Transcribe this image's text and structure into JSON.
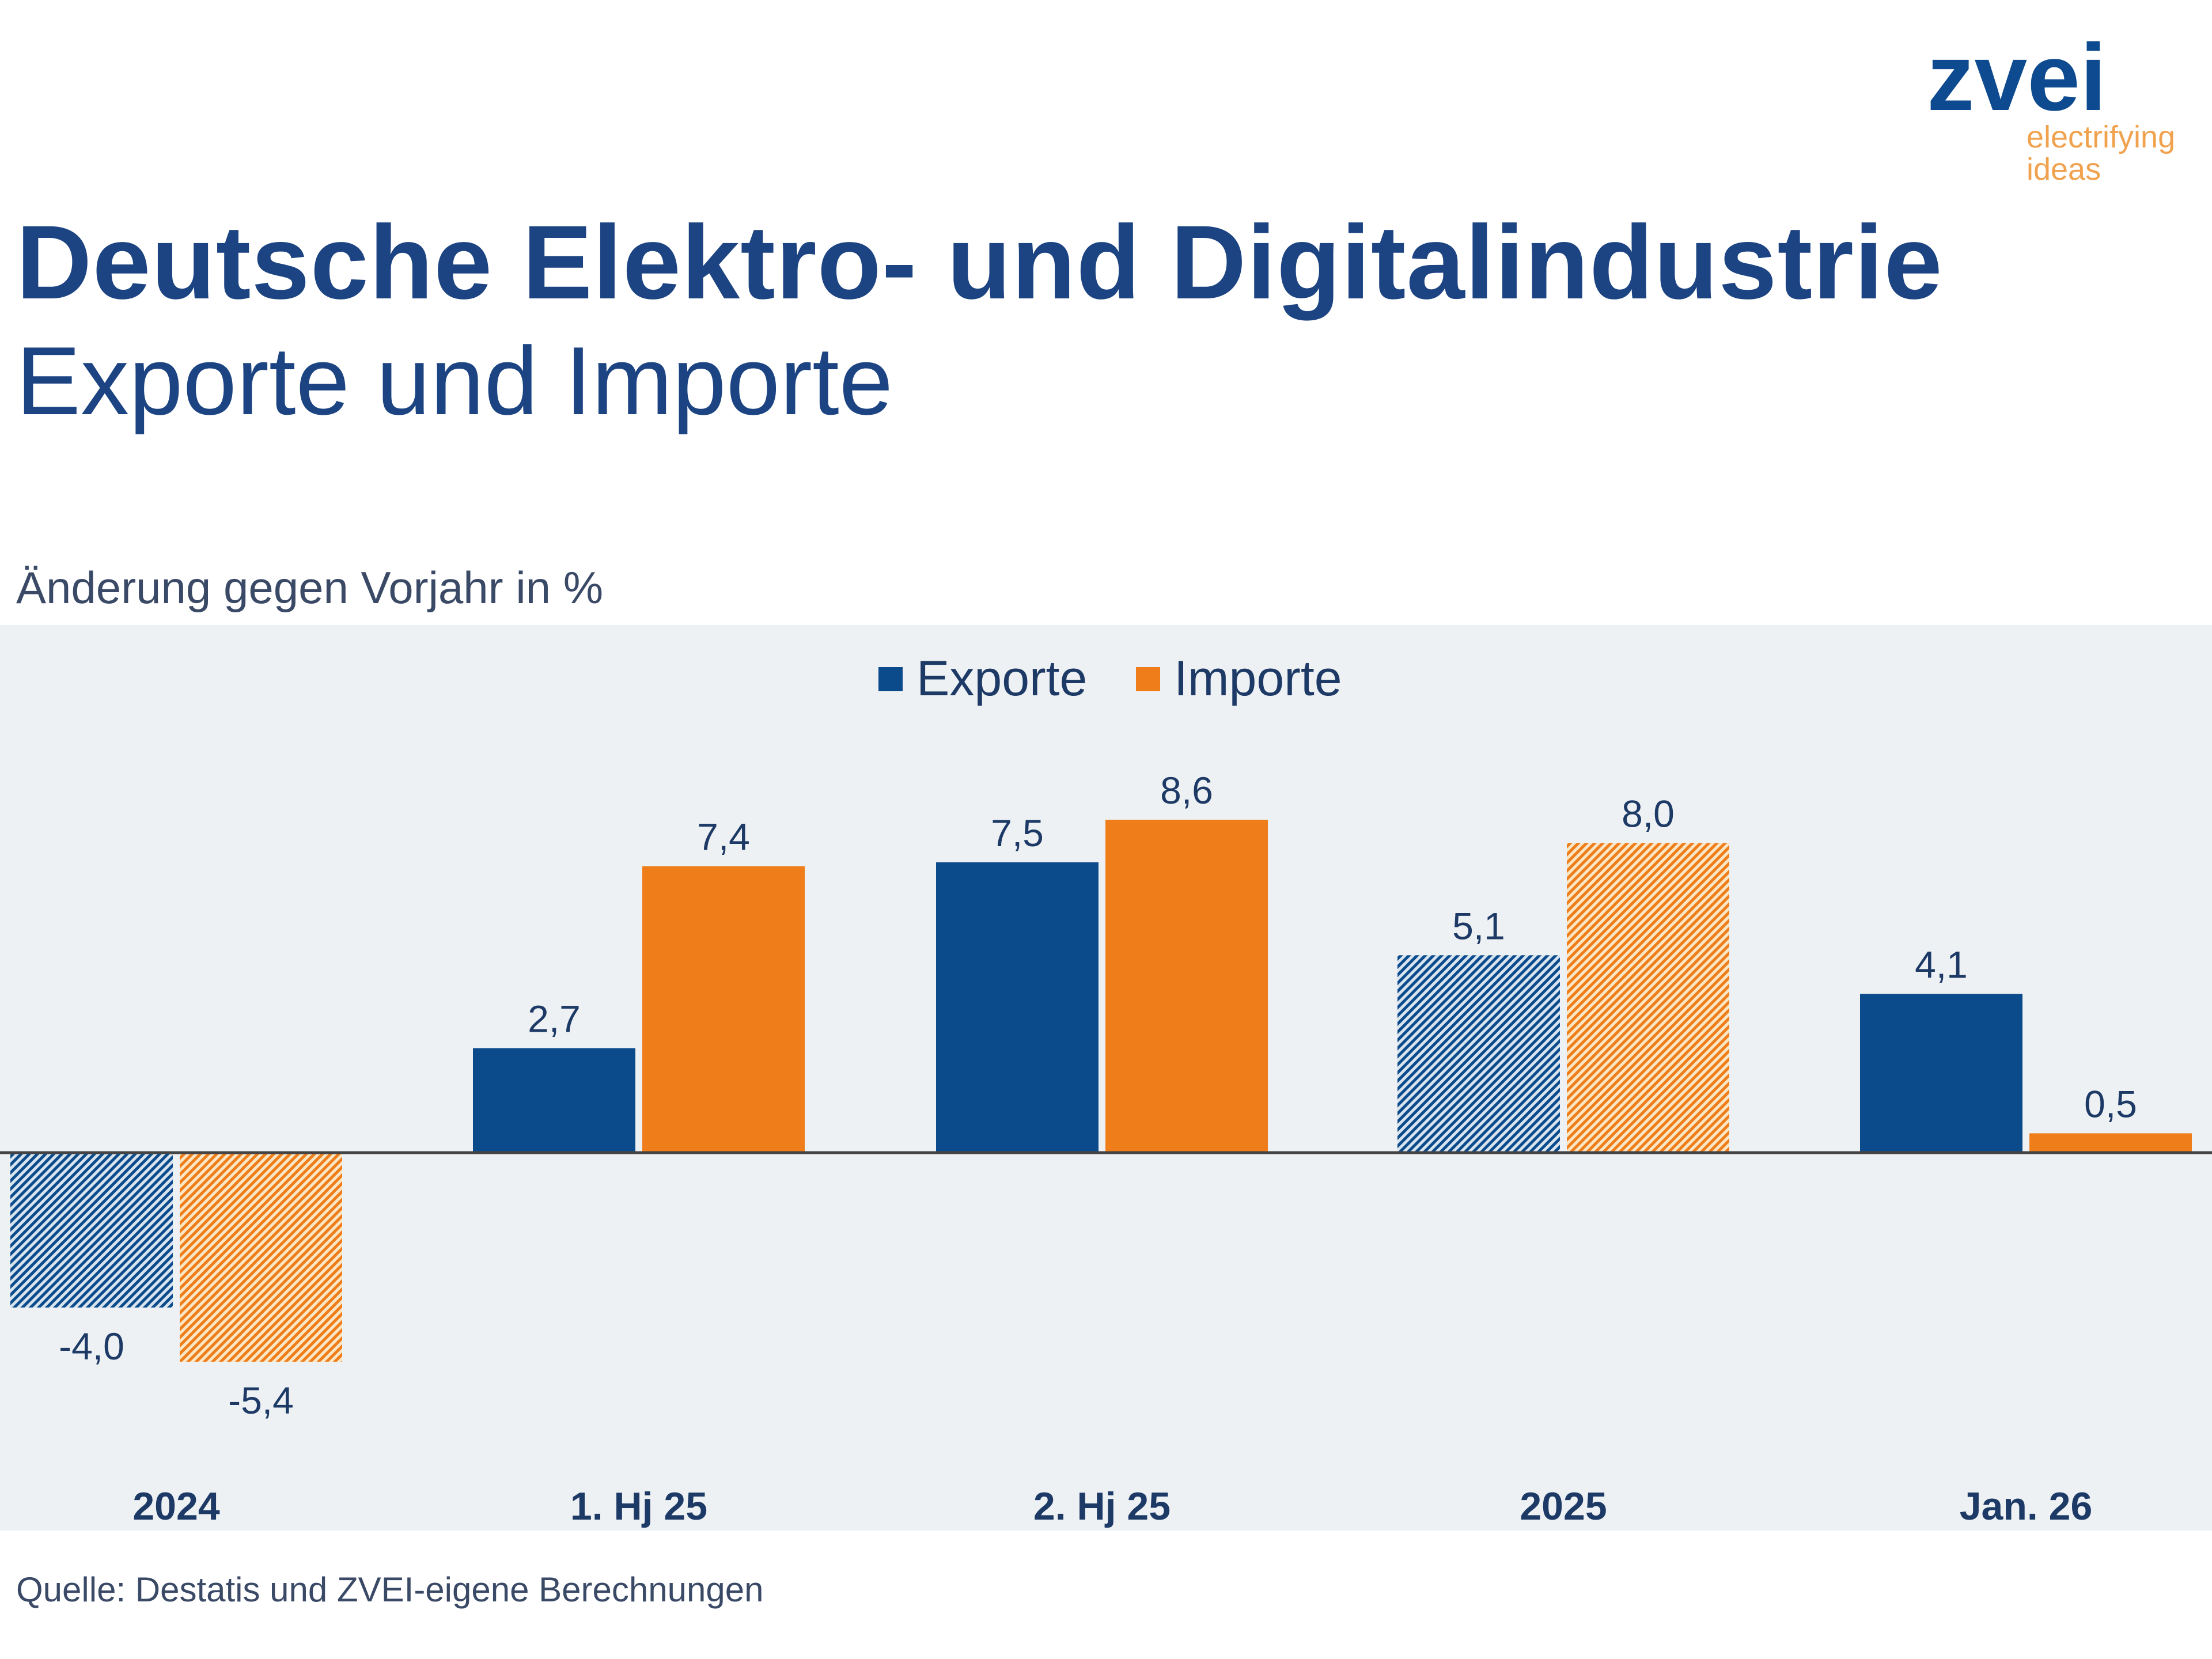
{
  "header": {
    "title": "Deutsche Elektro- und Digitalindustrie",
    "subtitle": "Exporte und Importe",
    "logo": {
      "name": "zvei",
      "tagline": "electrifying\nideas"
    }
  },
  "footer": {
    "source": "Quelle: Destatis und ZVEI-eigene Berechnungen"
  },
  "chart_data": {
    "type": "bar",
    "title": "",
    "ylabel": "Änderung gegen Vorjahr in %",
    "xlabel": "",
    "categories": [
      "2024",
      "1. Hj 25",
      "2. Hj 25",
      "2025",
      "Jan. 26"
    ],
    "series": [
      {
        "name": "Exporte",
        "color": "#0b4a8b",
        "values": [
          -4.0,
          2.7,
          7.5,
          5.1,
          4.1
        ],
        "labels": [
          "-4,0",
          "2,7",
          "7,5",
          "5,1",
          "4,1"
        ],
        "hatched": [
          true,
          false,
          false,
          true,
          false
        ]
      },
      {
        "name": "Importe",
        "color": "#ee7d1a",
        "values": [
          -5.4,
          7.4,
          8.6,
          8.0,
          0.5
        ],
        "labels": [
          "-5,4",
          "7,4",
          "8,6",
          "8,0",
          "0,5"
        ],
        "hatched": [
          true,
          false,
          false,
          true,
          false
        ]
      }
    ],
    "ylim": [
      -8.0,
      11.0
    ],
    "grid": false,
    "legend": "top-center",
    "background": "#eef1f3"
  }
}
